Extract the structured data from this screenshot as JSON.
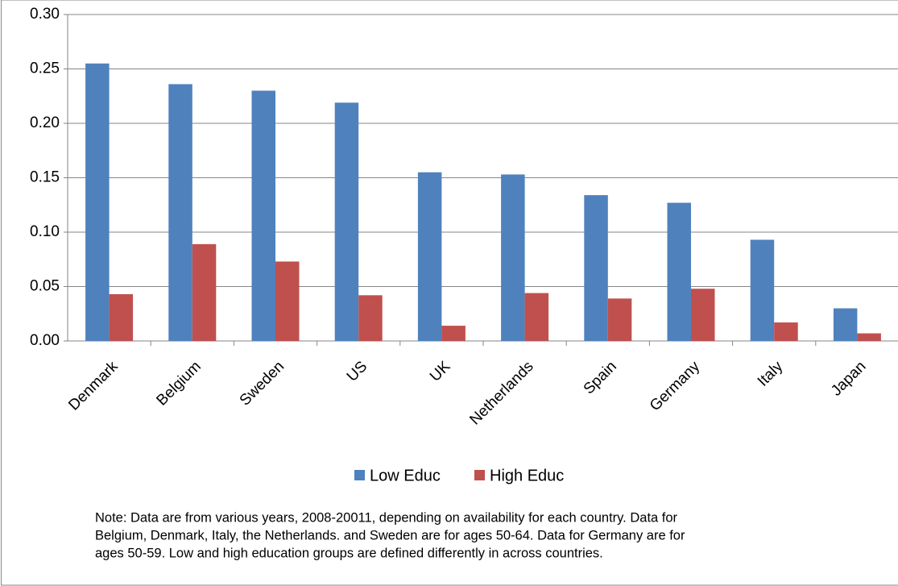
{
  "chart_data": {
    "type": "bar",
    "categories": [
      "Denmark",
      "Belgium",
      "Sweden",
      "US",
      "UK",
      "Netherlands",
      "Spain",
      "Germany",
      "Italy",
      "Japan"
    ],
    "series": [
      {
        "name": "Low Educ",
        "color": "#4f81bd",
        "values": [
          0.255,
          0.236,
          0.23,
          0.219,
          0.155,
          0.153,
          0.134,
          0.127,
          0.093,
          0.03
        ]
      },
      {
        "name": "High Educ",
        "color": "#c0504d",
        "values": [
          0.043,
          0.089,
          0.073,
          0.042,
          0.014,
          0.044,
          0.039,
          0.048,
          0.017,
          0.007
        ]
      }
    ],
    "ylim": [
      0,
      0.3
    ],
    "yticks": [
      {
        "value": 0,
        "label": "0.00"
      },
      {
        "value": 0.05,
        "label": "0.05"
      },
      {
        "value": 0.1,
        "label": "0.10"
      },
      {
        "value": 0.15,
        "label": "0.15"
      },
      {
        "value": 0.2,
        "label": "0.20"
      },
      {
        "value": 0.25,
        "label": "0.25"
      },
      {
        "value": 0.3,
        "label": "0.30"
      }
    ],
    "grid": true,
    "legend": "bottom",
    "note": [
      "Note:  Data are from various years, 2008-20011, depending on availability for each country.   Data for",
      "Belgium, Denmark, Italy,  the Netherlands.  and Sweden are for ages 50-64.  Data for Germany  are for",
      "ages 50-59.  Low and high education groups are defined differently  in across countries."
    ]
  }
}
